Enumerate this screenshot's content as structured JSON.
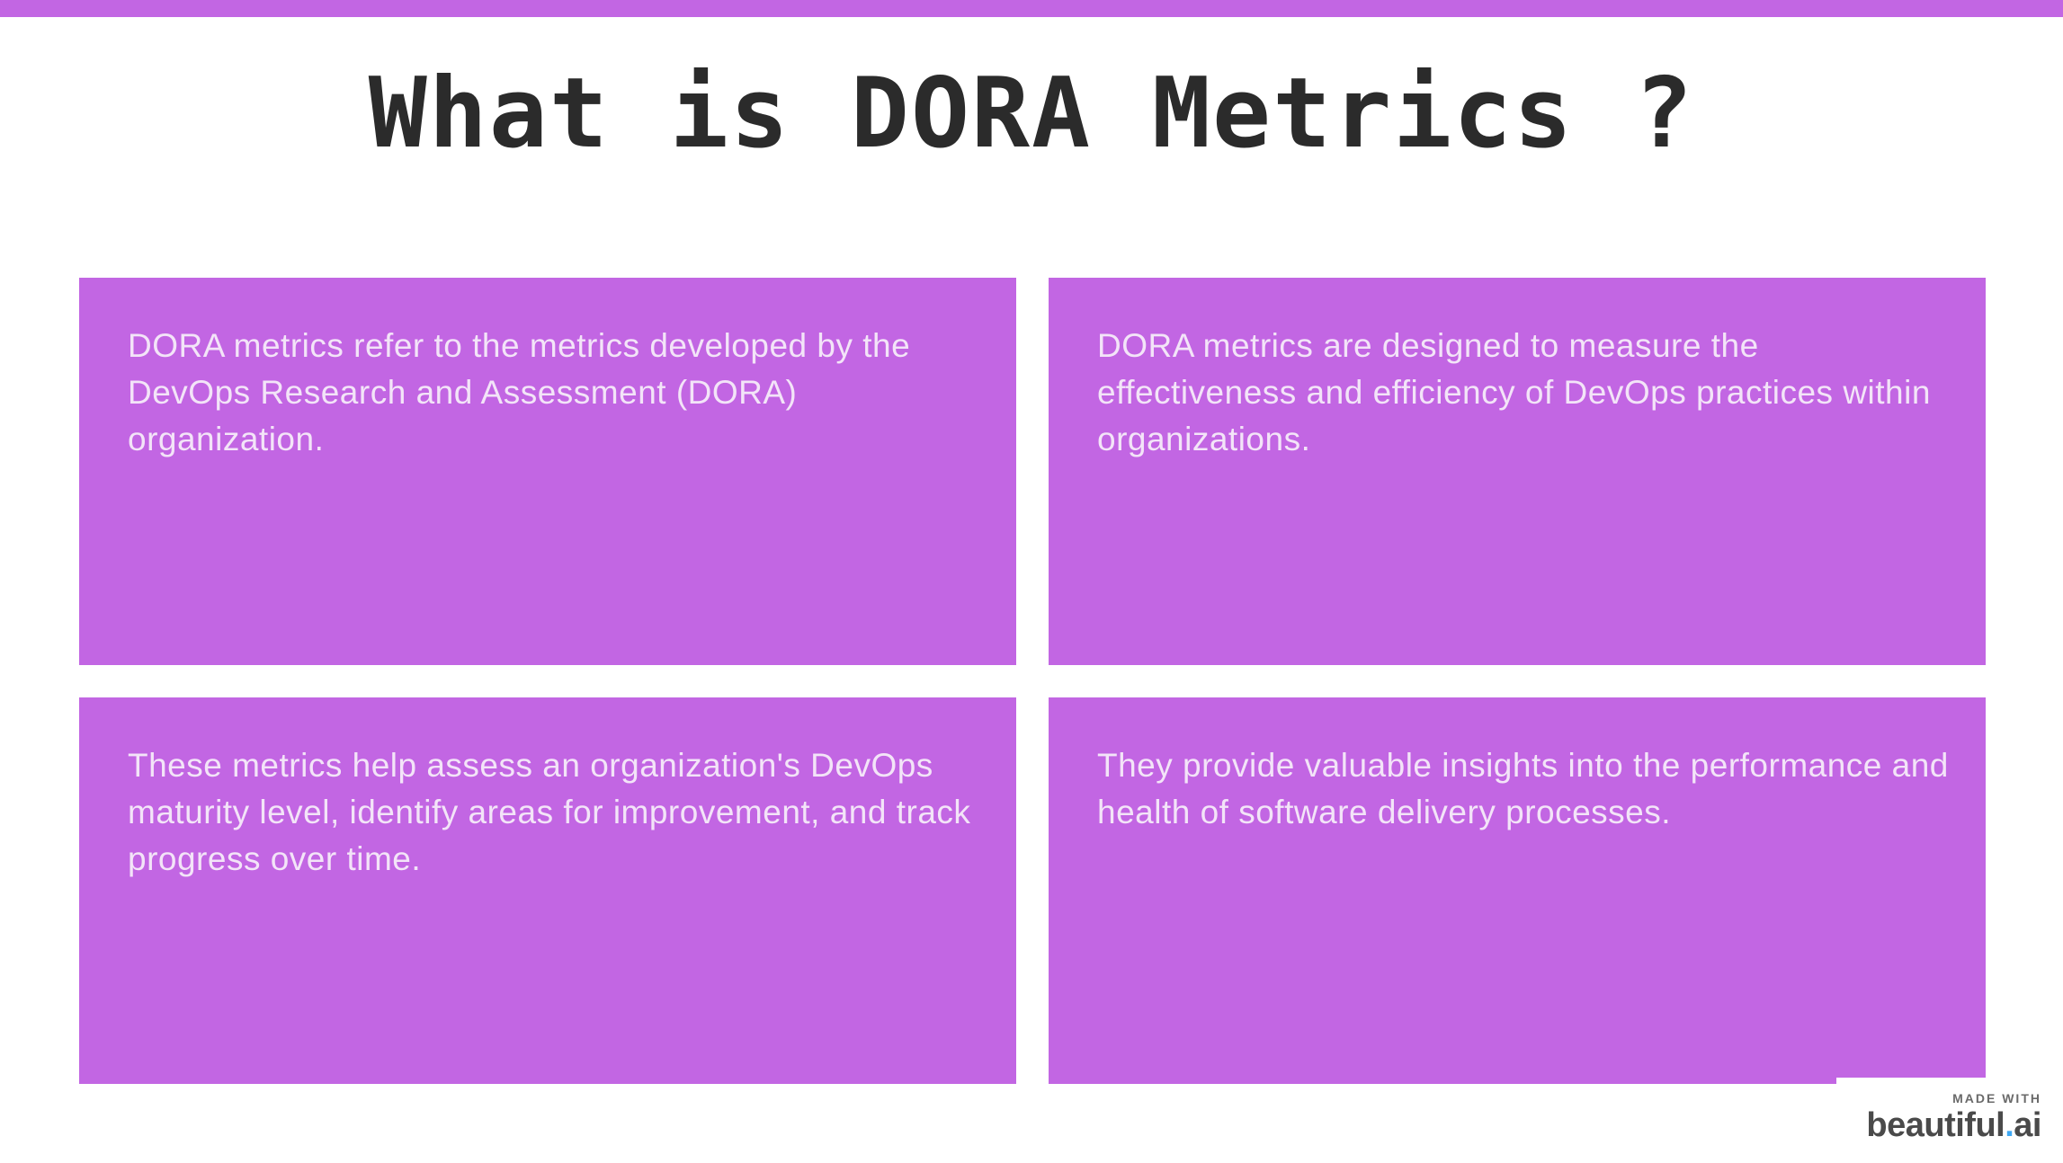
{
  "slide": {
    "title": "What is DORA Metrics ?",
    "accent_color": "#c266e3",
    "cards": [
      {
        "text": "DORA metrics refer to the metrics developed by the DevOps Research and Assessment (DORA) organization."
      },
      {
        "text": "DORA metrics are designed to measure the effectiveness and efficiency of DevOps practices within organizations."
      },
      {
        "text": "These metrics help assess an organization's DevOps maturity level, identify areas for improvement, and track progress over time."
      },
      {
        "text": "They provide valuable insights into the performance and health of software delivery processes."
      }
    ]
  },
  "badge": {
    "made_with": "MADE WITH",
    "brand_name": "beautiful",
    "brand_dot": ".",
    "brand_suffix": "ai"
  }
}
